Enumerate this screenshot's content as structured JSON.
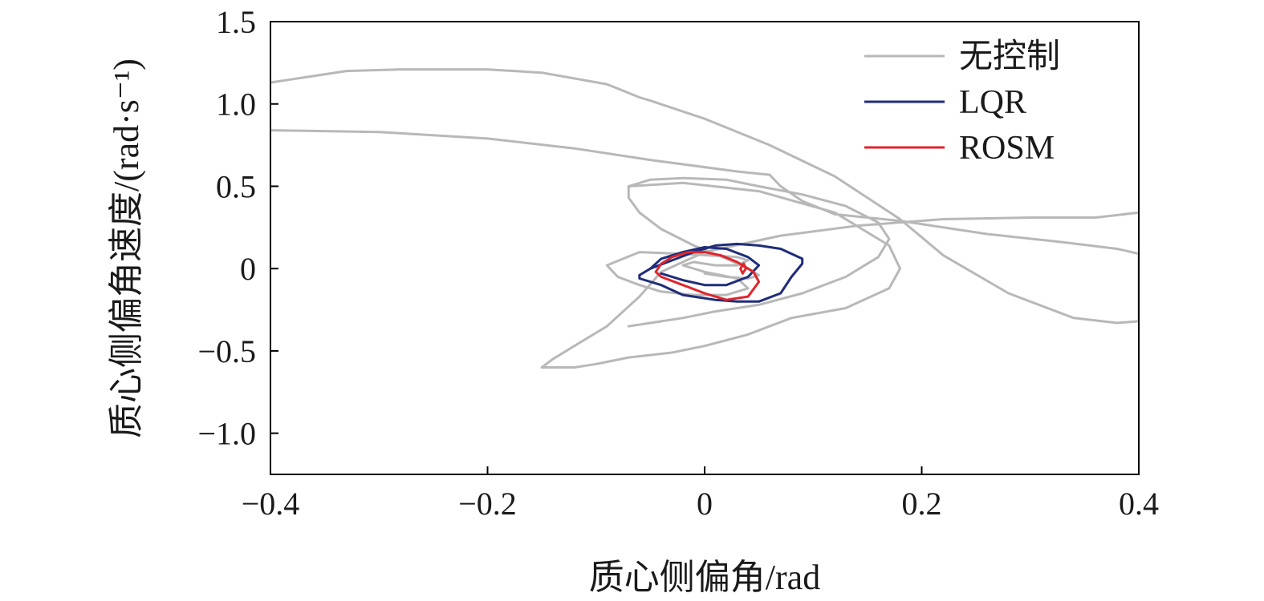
{
  "chart_data": {
    "type": "line",
    "title": "",
    "xlabel": "质心侧偏角/rad",
    "ylabel": "质心侧偏角速度/(rad·s⁻¹)",
    "xlim": [
      -0.4,
      0.4
    ],
    "ylim": [
      -1.25,
      1.5
    ],
    "x_ticks": [
      -0.4,
      -0.2,
      0,
      0.2,
      0.4
    ],
    "x_tick_labels": [
      "−0.4",
      "−0.2",
      "0",
      "0.2",
      "0.4"
    ],
    "y_ticks": [
      -1.0,
      -0.5,
      0,
      0.5,
      1.0,
      1.5
    ],
    "y_tick_labels": [
      "−1.0",
      "−0.5",
      "0",
      "0.5",
      "1.0",
      "1.5"
    ],
    "grid": false,
    "legend_position": "top-right",
    "series": [
      {
        "name": "无控制",
        "color": "#b8b8b8",
        "x": [
          -0.4,
          -0.33,
          -0.28,
          -0.2,
          -0.15,
          -0.09,
          -0.06,
          -0.05,
          0.0,
          0.06,
          0.12,
          0.18,
          0.22,
          0.28,
          0.34,
          0.38,
          0.4,
          0.4,
          0.38,
          0.33,
          0.26,
          0.18,
          0.12,
          0.09,
          0.07,
          0.06,
          0.03,
          -0.05,
          -0.12,
          -0.2,
          -0.3,
          -0.4,
          null,
          -0.07,
          -0.02,
          0.05,
          0.12,
          0.17,
          0.18,
          0.17,
          0.13,
          0.08,
          0.04,
          0.0,
          -0.03,
          -0.07,
          -0.1,
          -0.12,
          -0.15,
          -0.14,
          -0.12,
          -0.09,
          -0.06,
          -0.04,
          0.0,
          0.07,
          0.14,
          0.22,
          0.3,
          0.36,
          0.4,
          null,
          -0.07,
          -0.05,
          -0.02,
          0.01,
          0.05,
          0.09,
          0.13,
          0.16,
          0.17,
          0.16,
          0.13,
          0.09,
          0.05,
          0.02,
          -0.02,
          -0.05,
          -0.07,
          -0.07,
          -0.06,
          -0.04,
          -0.01,
          0.02,
          0.04,
          0.05,
          0.04,
          0.02,
          0.0,
          null,
          -0.09,
          -0.08,
          -0.06,
          -0.04,
          -0.01,
          0.02,
          0.04,
          0.03,
          0.0,
          -0.02,
          -0.01,
          0.01,
          0.03,
          0.04,
          0.03,
          -0.02,
          -0.06,
          -0.09
        ],
        "y": [
          1.13,
          1.2,
          1.21,
          1.21,
          1.19,
          1.12,
          1.04,
          1.02,
          0.91,
          0.75,
          0.56,
          0.3,
          0.08,
          -0.15,
          -0.3,
          -0.33,
          -0.32,
          0.09,
          0.12,
          0.16,
          0.21,
          0.29,
          0.33,
          0.41,
          0.5,
          0.57,
          0.59,
          0.66,
          0.73,
          0.79,
          0.83,
          0.84,
          null,
          0.5,
          0.52,
          0.47,
          0.34,
          0.14,
          0.0,
          -0.12,
          -0.24,
          -0.3,
          -0.4,
          -0.47,
          -0.51,
          -0.54,
          -0.58,
          -0.6,
          -0.6,
          -0.55,
          -0.47,
          -0.35,
          -0.17,
          -0.02,
          0.1,
          0.2,
          0.26,
          0.3,
          0.31,
          0.31,
          0.34,
          null,
          -0.35,
          -0.33,
          -0.3,
          -0.26,
          -0.22,
          -0.15,
          -0.05,
          0.07,
          0.18,
          0.28,
          0.38,
          0.45,
          0.5,
          0.54,
          0.55,
          0.54,
          0.5,
          0.43,
          0.34,
          0.24,
          0.14,
          0.06,
          0.0,
          -0.04,
          -0.06,
          -0.05,
          -0.03,
          null,
          0.02,
          -0.05,
          -0.1,
          -0.14,
          -0.16,
          -0.16,
          -0.12,
          -0.06,
          -0.02,
          0.02,
          0.04,
          0.02,
          0.02,
          0.05,
          0.07,
          0.09,
          0.1,
          0.02
        ]
      },
      {
        "name": "LQR",
        "color": "#1f2d7a",
        "x": [
          -0.06,
          -0.05,
          -0.03,
          -0.01,
          0.01,
          0.03,
          0.05,
          0.07,
          0.09,
          0.09,
          0.08,
          0.07,
          0.05,
          0.03,
          0.01,
          -0.02,
          -0.04,
          -0.06,
          -0.06,
          null,
          -0.05,
          -0.04,
          -0.02,
          0.0,
          0.02,
          0.04,
          0.05,
          0.04,
          0.02,
          0.0,
          -0.02,
          -0.04
        ],
        "y": [
          -0.04,
          0.0,
          0.05,
          0.1,
          0.14,
          0.15,
          0.14,
          0.12,
          0.06,
          0.03,
          -0.05,
          -0.15,
          -0.2,
          -0.2,
          -0.19,
          -0.16,
          -0.1,
          -0.06,
          -0.04,
          null,
          0.0,
          0.06,
          0.1,
          0.13,
          0.12,
          0.07,
          0.02,
          -0.05,
          -0.1,
          -0.1,
          -0.07,
          -0.03
        ]
      },
      {
        "name": "ROSM",
        "color": "#e0252b",
        "x": [
          -0.045,
          -0.04,
          -0.03,
          -0.015,
          0.0,
          0.015,
          0.03,
          0.045,
          0.05,
          0.04,
          0.02,
          0.0,
          -0.02,
          -0.04,
          -0.045,
          null,
          0.033,
          0.036,
          0.038,
          0.035,
          0.033
        ],
        "y": [
          -0.02,
          0.03,
          0.07,
          0.1,
          0.1,
          0.08,
          0.04,
          -0.02,
          -0.08,
          -0.17,
          -0.19,
          -0.15,
          -0.1,
          -0.05,
          -0.02,
          null,
          0.0,
          0.03,
          0.0,
          -0.03,
          0.0
        ]
      }
    ]
  }
}
